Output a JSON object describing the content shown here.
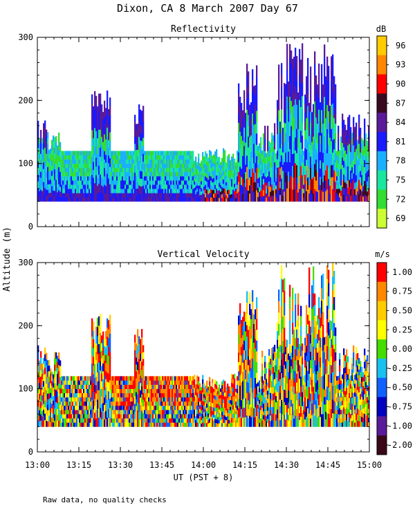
{
  "page": {
    "title": "Dixon, CA  8 March 2007  Day  67",
    "y_axis_label": "Altitude (m)",
    "x_axis_label": "UT  (PST + 8)",
    "footnote": "Raw data, no quality checks"
  },
  "chart_data": [
    {
      "type": "heatmap",
      "title": "Reflectivity",
      "xlabel": "UT  (PST + 8)",
      "ylabel": "Altitude (m)",
      "x_range": [
        "13:00",
        "15:00"
      ],
      "ylim": [
        0,
        300
      ],
      "x_ticks": [
        "13:00",
        "13:15",
        "13:30",
        "13:45",
        "14:00",
        "14:15",
        "14:30",
        "14:45",
        "15:00"
      ],
      "y_ticks": [
        "0",
        "100",
        "200",
        "300"
      ],
      "colorbar": {
        "unit": "dB",
        "labels": [
          "96",
          "93",
          "90",
          "87",
          "84",
          "81",
          "78",
          "75",
          "72",
          "69"
        ],
        "colors": [
          "#ffcc00",
          "#ff8800",
          "#ff0000",
          "#3a0a22",
          "#5a1a9a",
          "#1a1aff",
          "#1ab0ff",
          "#1ae6a0",
          "#33dd33",
          "#ccff33"
        ]
      },
      "description_values": {
        "lowest_gate_m": 40,
        "typical_top_m": 120,
        "max_echo_top_m": 300
      }
    },
    {
      "type": "heatmap",
      "title": "Vertical Velocity",
      "xlabel": "UT  (PST + 8)",
      "ylabel": "Altitude (m)",
      "x_range": [
        "13:00",
        "15:00"
      ],
      "ylim": [
        0,
        300
      ],
      "x_ticks": [
        "13:00",
        "13:15",
        "13:30",
        "13:45",
        "14:00",
        "14:15",
        "14:30",
        "14:45",
        "15:00"
      ],
      "y_ticks": [
        "0",
        "100",
        "200",
        "300"
      ],
      "colorbar": {
        "unit": "m/s",
        "labels": [
          "1.00",
          "0.75",
          "0.50",
          "0.25",
          "0.00",
          "-0.25",
          "-0.50",
          "-0.75",
          "-1.00",
          "-2.00"
        ],
        "colors": [
          "#ff0000",
          "#ff8800",
          "#ffcc00",
          "#ffff00",
          "#44dd00",
          "#18c0f0",
          "#1060ff",
          "#0000c0",
          "#5a1a9a",
          "#3a0818"
        ]
      }
    }
  ]
}
